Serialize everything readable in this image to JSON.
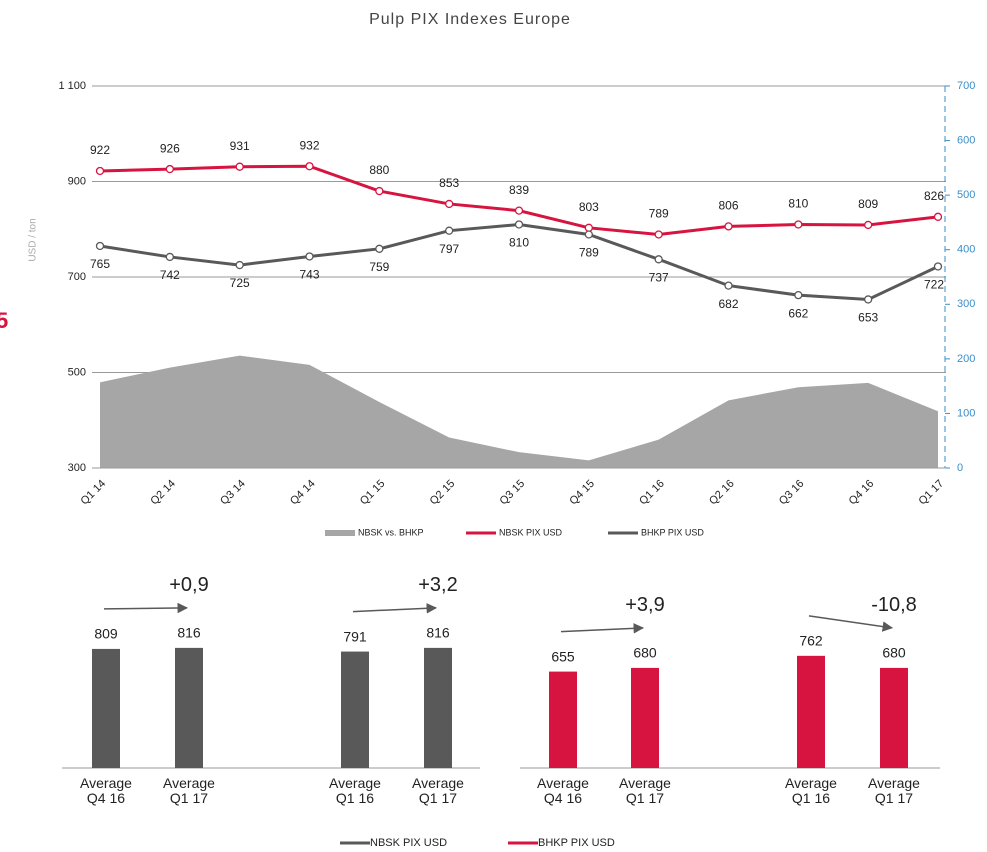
{
  "side_label": "5",
  "chart_data": [
    {
      "type": "line",
      "title": "Pulp PIX Indexes Europe",
      "y_label": "USD / ton",
      "categories": [
        "Q1 14",
        "Q2 14",
        "Q3 14",
        "Q4 14",
        "Q1 15",
        "Q2 15",
        "Q3 15",
        "Q4 15",
        "Q1 16",
        "Q2 16",
        "Q3 16",
        "Q4 16",
        "Q1 17"
      ],
      "ylim": [
        300,
        1100
      ],
      "yticks": [
        {
          "value": 1100,
          "label": "1 100"
        },
        900,
        700,
        500,
        300
      ],
      "y2lim": [
        0,
        700
      ],
      "y2ticks": [
        0,
        100,
        200,
        300,
        400,
        500,
        600,
        700
      ],
      "grid": true,
      "series": [
        {
          "name": "NBSK vs. BHKP",
          "type": "area",
          "axis": "y2",
          "color": "#a6a6a6",
          "values": [
            157,
            184,
            206,
            189,
            121,
            56,
            29,
            14,
            52,
            124,
            148,
            156,
            104
          ]
        },
        {
          "name": "NBSK PIX USD",
          "color": "#d7143f",
          "values": [
            922,
            926,
            931,
            932,
            880,
            853,
            839,
            803,
            789,
            806,
            810,
            809,
            826
          ]
        },
        {
          "name": "BHKP PIX USD",
          "color": "#595959",
          "values": [
            765,
            742,
            725,
            743,
            759,
            797,
            810,
            789,
            737,
            682,
            662,
            653,
            722
          ]
        }
      ]
    },
    {
      "type": "bar",
      "series": [
        {
          "name": "NBSK PIX USD",
          "color": "#595959",
          "groups": [
            {
              "categories": [
                "Average\nQ4 16",
                "Average\nQ1 17"
              ],
              "values": [
                809,
                816
              ],
              "change": "+0,9"
            },
            {
              "categories": [
                "Average\nQ1 16",
                "Average\nQ1 17"
              ],
              "values": [
                791,
                816
              ],
              "change": "+3,2"
            }
          ]
        },
        {
          "name": "BHKP PIX USD",
          "color": "#d7143f",
          "groups": [
            {
              "categories": [
                "Average\nQ4 16",
                "Average\nQ1 17"
              ],
              "values": [
                655,
                680
              ],
              "change": "+3,9"
            },
            {
              "categories": [
                "Average\nQ1 16",
                "Average\nQ1 17"
              ],
              "values": [
                762,
                680
              ],
              "change": "-10,8"
            }
          ]
        }
      ]
    }
  ]
}
